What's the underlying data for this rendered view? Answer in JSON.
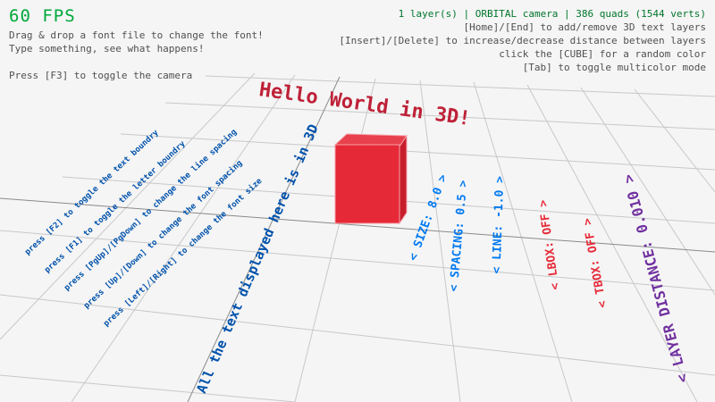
{
  "hud": {
    "fps": "60 FPS",
    "help_lines": [
      "Drag & drop a font file to change the font!",
      "Type something, see what happens!",
      "Press [F3] to toggle the camera"
    ],
    "status": "1 layer(s) | ORBITAL camera |  386 quads (1544 verts)",
    "right_lines": [
      "[Home]/[End] to add/remove 3D text layers",
      "[Insert]/[Delete] to increase/decrease distance between layers",
      "click the [CUBE] for a random color",
      "[Tab] to toggle multicolor mode"
    ]
  },
  "scene": {
    "title_text": "Hello World in 3D!",
    "main_text": "All the text displayed here is in 3D",
    "instructions": [
      "press [F2] to toggle the text boundry",
      "press [F1] to toggle the letter boundry",
      "press [PgUp]/[PgDown] to change the line spacing",
      "press [Up]/[Down] to change the font spacing",
      "press [Left]/[Right] to change the font size"
    ],
    "settings": [
      {
        "label": "< SIZE: 8.0 >",
        "color": "#0079f1"
      },
      {
        "label": "< SPACING: 0.5 >",
        "color": "#0079f1"
      },
      {
        "label": "< LINE: -1.0 >",
        "color": "#0079f1"
      },
      {
        "label": "< LBOX: OFF >",
        "color": "#e62937"
      },
      {
        "label": "< TBOX: OFF >",
        "color": "#e62937"
      },
      {
        "label": "< LAYER DISTANCE: 0.010 >",
        "color": "#70309f"
      }
    ],
    "cube_color": "#e62937"
  },
  "colors": {
    "fps": "#00a83a",
    "status": "#00752c",
    "help": "#505050",
    "title": "#be2137",
    "instructions": "#0052ac"
  }
}
